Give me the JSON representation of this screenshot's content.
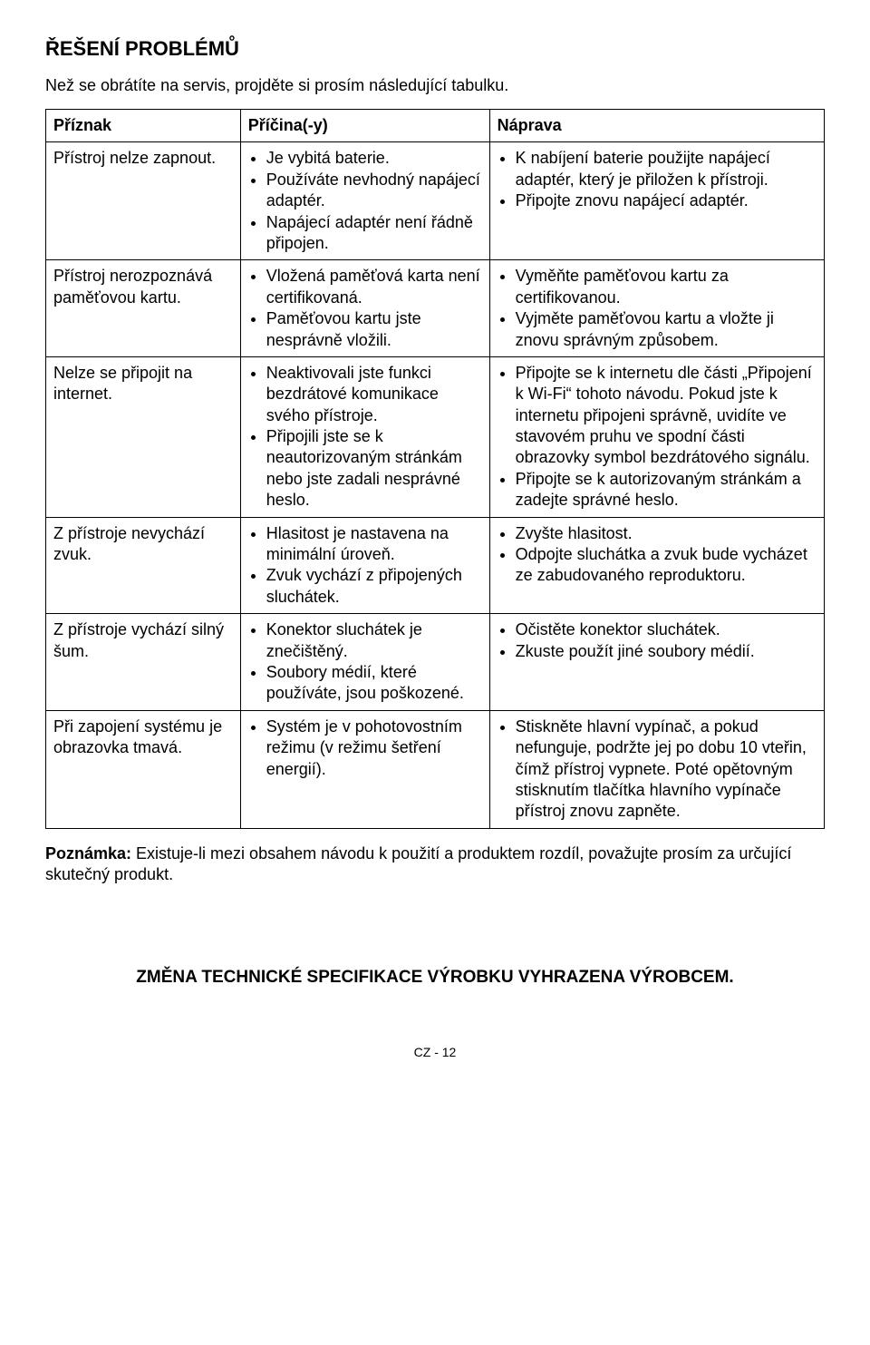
{
  "title": "ŘEŠENÍ PROBLÉMŮ",
  "intro": "Než se obrátíte na servis, projděte si prosím následující tabulku.",
  "table": {
    "headers": [
      "Příznak",
      "Příčina(-y)",
      "Náprava"
    ],
    "rows": [
      {
        "symptom": "Přístroj nelze zapnout.",
        "causes": [
          "Je vybitá baterie.",
          "Používáte nevhodný napájecí adaptér.",
          "Napájecí adaptér není řádně připojen."
        ],
        "remedies": [
          "K nabíjení baterie použijte napájecí adaptér, který je přiložen k přístroji.",
          "Připojte znovu napájecí adaptér."
        ]
      },
      {
        "symptom": "Přístroj nerozpoznává paměťovou kartu.",
        "causes": [
          "Vložená paměťová karta není certifikovaná.",
          "Paměťovou kartu jste nesprávně vložili."
        ],
        "remedies": [
          "Vyměňte paměťovou kartu za certifikovanou.",
          "Vyjměte paměťovou kartu a vložte ji znovu správným způsobem."
        ]
      },
      {
        "symptom": "Nelze se připojit na internet.",
        "causes": [
          "Neaktivovali jste funkci bezdrátové komunikace svého přístroje.",
          "Připojili jste se k neautorizovaným stránkám nebo jste zadali nesprávné heslo."
        ],
        "remedies": [
          "Připojte se k internetu dle části „Připojení k Wi-Fi“ tohoto návodu. Pokud jste k internetu připojeni správně, uvidíte ve stavovém pruhu ve spodní části obrazovky symbol bezdrátového signálu.",
          "Připojte se k autorizovaným stránkám a zadejte správné heslo."
        ]
      },
      {
        "symptom": "Z přístroje nevychází zvuk.",
        "causes": [
          "Hlasitost je nastavena na minimální úroveň.",
          "Zvuk vychází z připojených sluchátek."
        ],
        "remedies": [
          "Zvyšte hlasitost.",
          "Odpojte sluchátka a zvuk bude vycházet ze zabudovaného reproduktoru."
        ]
      },
      {
        "symptom": "Z přístroje vychází silný šum.",
        "causes": [
          "Konektor sluchátek je znečištěný.",
          "Soubory médií, které používáte, jsou poškozené."
        ],
        "remedies": [
          "Očistěte konektor sluchátek.",
          "Zkuste použít jiné soubory médií."
        ]
      },
      {
        "symptom": "Při zapojení systému je obrazovka tmavá.",
        "causes": [
          "Systém je v pohotovostním režimu (v režimu šetření energií)."
        ],
        "remedies": [
          "Stiskněte hlavní vypínač, a pokud nefunguje, podržte jej po dobu 10 vteřin, čímž přístroj vypnete. Poté opětovným stisknutím tlačítka hlavního vypínače přístroj znovu zapněte."
        ]
      }
    ]
  },
  "note_label": "Poznámka:",
  "note_text": " Existuje-li mezi obsahem návodu k použití a produktem rozdíl, považujte prosím za určující skutečný produkt.",
  "footer": "ZMĚNA TECHNICKÉ SPECIFIKACE VÝROBKU VYHRAZENA VÝROBCEM.",
  "page_num": "CZ - 12"
}
